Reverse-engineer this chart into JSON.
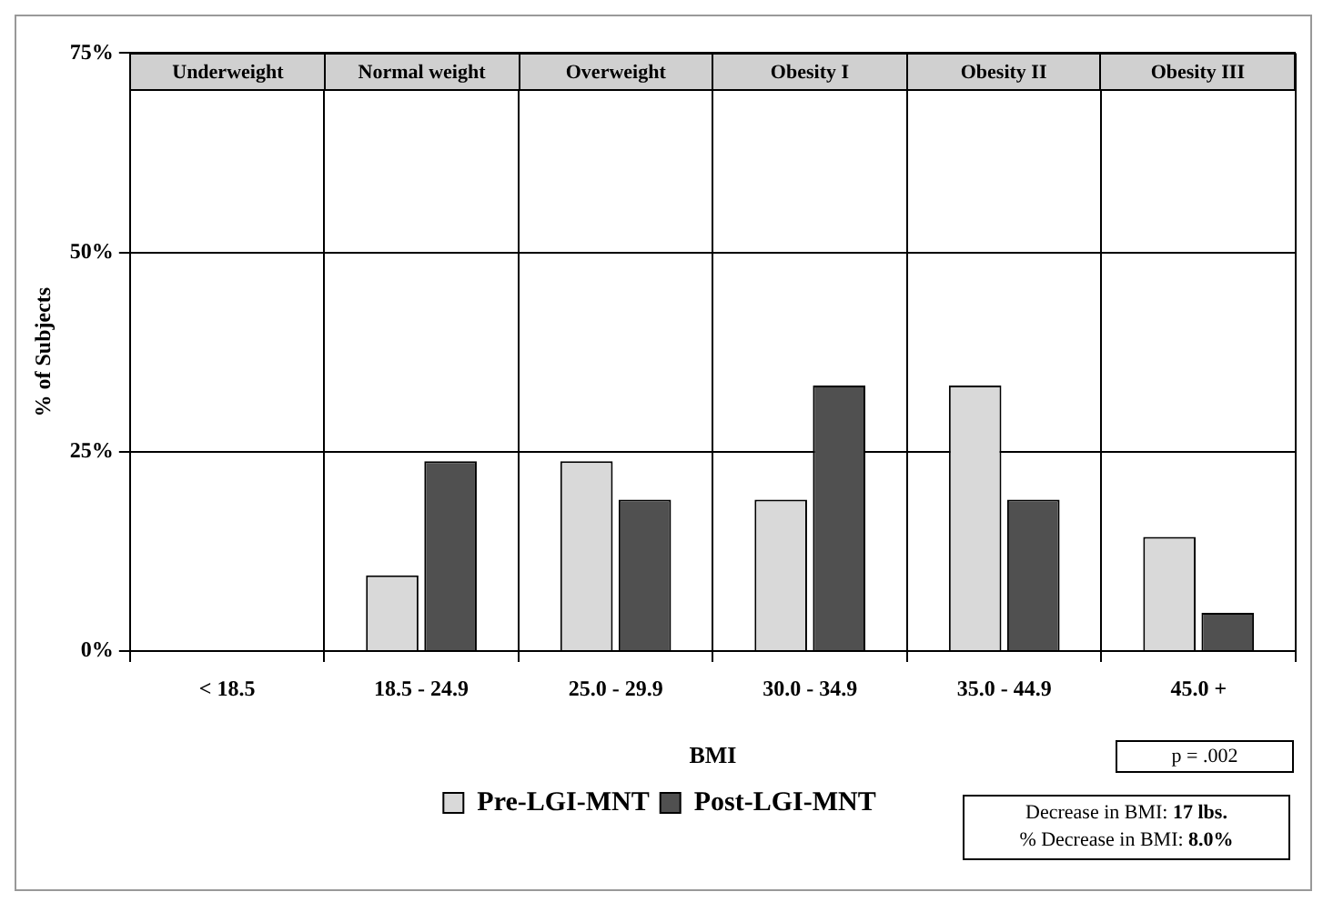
{
  "chart_data": {
    "type": "bar",
    "xlabel": "BMI",
    "ylabel": "% of Subjects",
    "categories": [
      "< 18.5",
      "18.5 - 24.9",
      "25.0 - 29.9",
      "30.0 - 34.9",
      "35.0 - 44.9",
      "45.0 +"
    ],
    "series": [
      {
        "name": "Pre-LGI-MNT",
        "color": "#d9d9d9",
        "values": [
          0,
          9.5,
          23.8,
          19,
          33.3,
          14.3
        ]
      },
      {
        "name": "Post-LGI-MNT",
        "color": "#505050",
        "values": [
          0,
          23.8,
          19,
          33.3,
          19,
          4.8
        ]
      }
    ],
    "ylim": [
      0,
      75
    ],
    "yticks": [
      {
        "value": 0,
        "label": "0%"
      },
      {
        "value": 25,
        "label": "25%"
      },
      {
        "value": 50,
        "label": "50%"
      },
      {
        "value": 75,
        "label": "75%"
      }
    ],
    "grid": true,
    "legend": "bottom",
    "annotations": [
      "Underweight",
      "Normal weight",
      "Overweight",
      "Obesity I",
      "Obesity II",
      "Obesity III",
      "p = .002",
      "Decrease in BMI: 17 lbs.",
      "% Decrease in BMI: 8.0%"
    ]
  }
}
